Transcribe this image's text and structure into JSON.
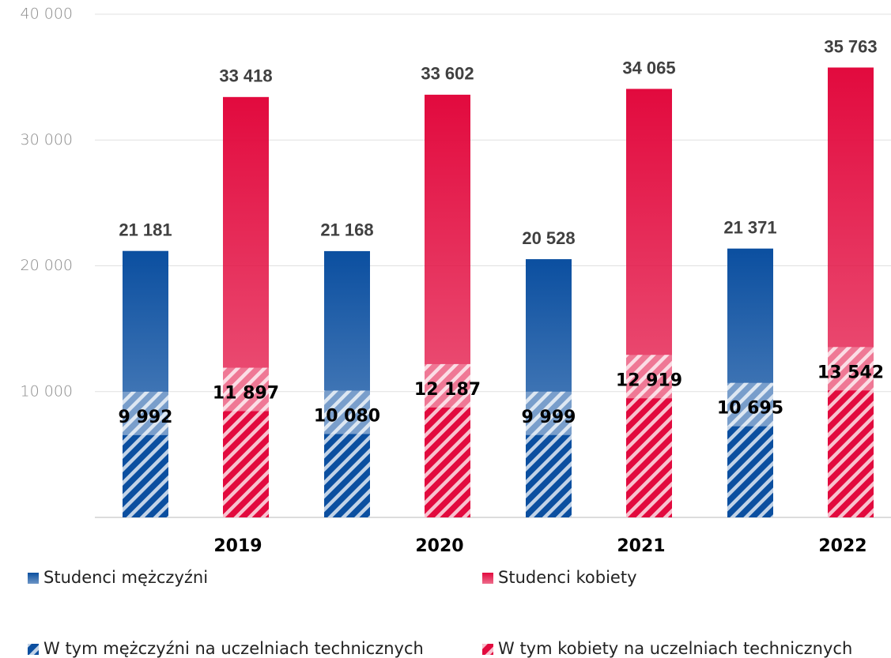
{
  "chart_data": {
    "type": "bar",
    "categories": [
      "2019",
      "2020",
      "2021",
      "2022"
    ],
    "series": [
      {
        "name": "Studenci mężczyźni",
        "color": "#0b4fa0",
        "values": [
          21181,
          21168,
          20528,
          21371
        ],
        "value_labels": [
          "21 181",
          "21 168",
          "20 528",
          "21 371"
        ]
      },
      {
        "name": "Studenci kobiety",
        "color": "#e20a3e",
        "values": [
          33418,
          33602,
          34065,
          35763
        ],
        "value_labels": [
          "33 418",
          "33 602",
          "34 065",
          "35 763"
        ]
      },
      {
        "name": "W tym mężczyźni na uczelniach technicznych",
        "color": "#0b4fa0",
        "hatch": true,
        "values": [
          9992,
          10080,
          9999,
          10695
        ],
        "value_labels": [
          "9 992",
          "10 080",
          "9 999",
          "10 695"
        ]
      },
      {
        "name": "W tym kobiety na uczelniach technicznych",
        "color": "#e20a3e",
        "hatch": true,
        "values": [
          11897,
          12187,
          12919,
          13542
        ],
        "value_labels": [
          "11 897",
          "12 187",
          "12 919",
          "13 542"
        ]
      }
    ],
    "ylim": [
      0,
      40000
    ],
    "yticks": [
      {
        "value": 10000,
        "label": "10 000"
      },
      {
        "value": 20000,
        "label": "20 000"
      },
      {
        "value": 30000,
        "label": "30 000"
      },
      {
        "value": 40000,
        "label": "40 000"
      }
    ],
    "grid": true
  }
}
